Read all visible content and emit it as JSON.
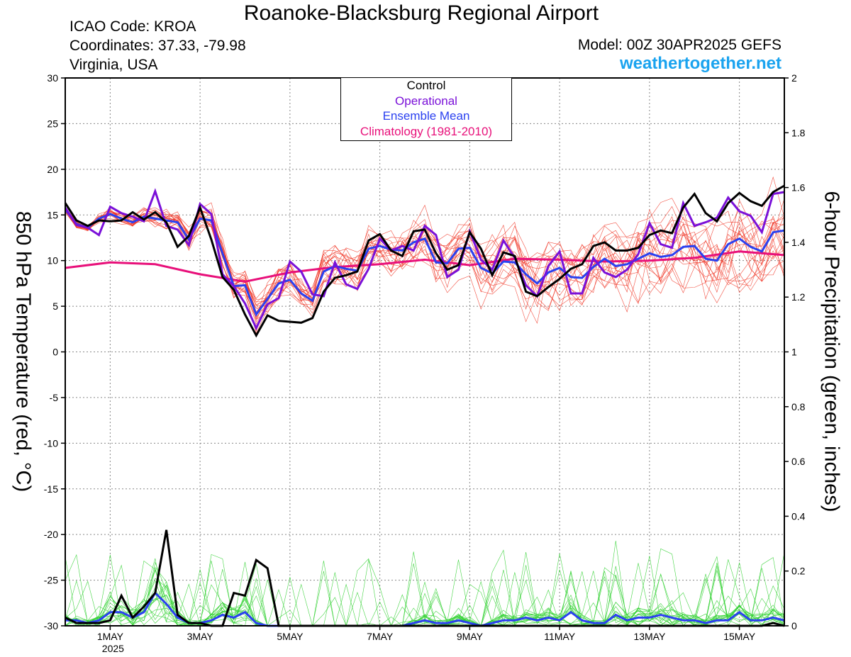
{
  "header": {
    "title": "Roanoke-Blacksburg Regional Airport",
    "icao": "ICAO Code: KROA",
    "coordinates": "Coordinates: 37.33, -79.98",
    "region": "Virginia, USA",
    "model": "Model: 00Z 30APR2025 GEFS",
    "site": "weathertogether.net"
  },
  "colors": {
    "control": "#000000",
    "operational": "#7a10d8",
    "ensemble_mean": "#2a40f0",
    "climatology": "#e8107a",
    "members_temp": "#f03020",
    "members_precip": "#30d030",
    "site_text": "#1aa3ef"
  },
  "chart_data": {
    "type": "line",
    "title": "Roanoke-Blacksburg Regional Airport",
    "ylabel": "850 hPa Temperature (red, °C)",
    "ylabel2": "6-hour Precipitation (green, inches)",
    "xlim": [
      0,
      16
    ],
    "ylim": [
      -30,
      30
    ],
    "y2lim": [
      0,
      2
    ],
    "yticks": [
      30,
      25,
      20,
      15,
      10,
      5,
      0,
      -5,
      -10,
      -15,
      -20,
      -25,
      -30
    ],
    "y2ticks": [
      "2",
      "1.8",
      "1.6",
      "1.4",
      "1.2",
      "1",
      "0.8",
      "0.6",
      "0.4",
      "0.2",
      "0"
    ],
    "xticks": [
      {
        "x": 1,
        "label": "1MAY",
        "sub": "2025"
      },
      {
        "x": 3,
        "label": "3MAY",
        "sub": ""
      },
      {
        "x": 5,
        "label": "5MAY",
        "sub": ""
      },
      {
        "x": 7,
        "label": "7MAY",
        "sub": ""
      },
      {
        "x": 9,
        "label": "9MAY",
        "sub": ""
      },
      {
        "x": 11,
        "label": "11MAY",
        "sub": ""
      },
      {
        "x": 13,
        "label": "13MAY",
        "sub": ""
      },
      {
        "x": 15,
        "label": "15MAY",
        "sub": ""
      }
    ],
    "legend": [
      "Control",
      "Operational",
      "Ensemble Mean",
      "Climatology (1981-2010)"
    ],
    "control_temp": {
      "x0": 0,
      "dx": 0.25,
      "values": [
        16.3,
        14.4,
        13.8,
        14.4,
        14.3,
        14.4,
        15.3,
        14.5,
        15.3,
        14.2,
        11.5,
        12.7,
        15.8,
        12.3,
        8.2,
        6.8,
        4.1,
        1.8,
        4.0,
        3.4,
        3.3,
        3.2,
        3.7,
        6.6,
        8.1,
        8.4,
        8.8,
        12.2,
        12.9,
        11.1,
        10.5,
        13.2,
        13.4,
        10.8,
        9.0,
        9.5,
        13.1,
        11.3,
        8.4,
        10.9,
        10.5,
        6.6,
        6.1,
        7.1,
        8.0,
        9.1,
        9.6,
        11.6,
        12.0,
        11.1,
        11.1,
        11.4,
        12.8,
        13.3,
        13.0,
        15.8,
        17.3,
        15.2,
        14.3,
        16.3,
        17.4,
        16.5,
        16.0,
        17.5,
        18.2
      ]
    },
    "operational_temp": {
      "x0": 0,
      "dx": 0.25,
      "values": [
        15.8,
        13.9,
        13.6,
        12.8,
        15.9,
        15.2,
        14.8,
        14.3,
        17.6,
        13.8,
        13.4,
        11.7,
        16.2,
        15.1,
        8.5,
        7.2,
        5.3,
        2.6,
        5.2,
        5.9,
        9.9,
        8.8,
        6.3,
        6.1,
        9.8,
        7.4,
        6.9,
        9.1,
        12.4,
        11.1,
        11.6,
        11.1,
        13.8,
        12.8,
        8.2,
        9.0,
        13.2,
        10.1,
        9.0,
        12.2,
        10.3,
        7.3,
        6.1,
        9.4,
        11.0,
        6.4,
        6.4,
        10.3,
        8.7,
        8.2,
        9.0,
        10.7,
        14.1,
        11.8,
        11.4,
        16.3,
        13.8,
        14.2,
        14.7,
        16.9,
        15.4,
        14.9,
        13.1,
        17.3,
        17.5
      ]
    },
    "mean_temp": {
      "x0": 0,
      "dx": 0.25,
      "values": [
        15.6,
        14.0,
        13.6,
        14.6,
        15.1,
        14.6,
        14.2,
        14.8,
        14.6,
        14.4,
        14.2,
        12.3,
        14.6,
        14.4,
        10.8,
        7.2,
        7.3,
        4.1,
        5.8,
        7.5,
        7.9,
        6.4,
        5.6,
        8.8,
        9.4,
        9.1,
        8.9,
        11.3,
        11.6,
        11.2,
        11.1,
        12.0,
        12.4,
        9.8,
        9.7,
        11.3,
        11.4,
        9.2,
        8.6,
        9.9,
        9.8,
        8.5,
        7.5,
        8.7,
        9.2,
        8.2,
        8.1,
        9.3,
        10.2,
        9.4,
        9.6,
        10.2,
        10.8,
        10.4,
        10.6,
        11.5,
        11.6,
        10.2,
        10.0,
        11.8,
        12.4,
        11.5,
        11.0,
        13.1,
        13.3
      ]
    },
    "climatology_temp": {
      "x0": 0,
      "dx": 1,
      "values": [
        9.2,
        9.8,
        9.6,
        8.5,
        7.7,
        8.7,
        9.3,
        9.6,
        10.1,
        9.5,
        10.2,
        10.1,
        9.9,
        10.0,
        10.3,
        11.0,
        10.6
      ]
    },
    "control_precip": {
      "x0": 0,
      "dx": 0.25,
      "values": [
        0.03,
        0.01,
        0.01,
        0.01,
        0.02,
        0.11,
        0.03,
        0.07,
        0.12,
        0.35,
        0.04,
        0.01,
        0.01,
        0.0,
        0.0,
        0.12,
        0.11,
        0.24,
        0.21,
        0.0,
        0.0,
        0.0,
        0.0,
        0.0,
        0.0,
        0.0,
        0.0,
        0.0,
        0.0,
        0.0,
        0.0,
        0.0,
        0.0,
        0.0,
        0.0,
        0.0,
        0.0,
        0.0,
        0.0,
        0.0,
        0.0,
        0.0,
        0.0,
        0.0,
        0.0,
        0.0,
        0.0,
        0.0,
        0.0,
        0.0,
        0.0,
        0.0,
        0.0,
        0.0,
        0.0,
        0.0,
        0.0,
        0.0,
        0.0,
        0.0,
        0.0,
        0.0,
        0.0,
        0.01,
        0.0
      ]
    },
    "mean_precip": {
      "x0": 0,
      "dx": 0.25,
      "values": [
        0.02,
        0.02,
        0.01,
        0.02,
        0.05,
        0.05,
        0.03,
        0.05,
        0.12,
        0.08,
        0.03,
        0.01,
        0.01,
        0.02,
        0.04,
        0.03,
        0.05,
        0.01,
        0.0,
        0.0,
        0.0,
        0.0,
        0.0,
        0.0,
        0.0,
        0.0,
        0.0,
        0.0,
        0.0,
        0.0,
        0.0,
        0.01,
        0.02,
        0.01,
        0.01,
        0.02,
        0.01,
        0.0,
        0.01,
        0.02,
        0.02,
        0.03,
        0.02,
        0.03,
        0.02,
        0.05,
        0.02,
        0.01,
        0.01,
        0.04,
        0.02,
        0.03,
        0.03,
        0.04,
        0.03,
        0.02,
        0.02,
        0.01,
        0.02,
        0.02,
        0.05,
        0.02,
        0.02,
        0.03,
        0.02
      ]
    }
  }
}
